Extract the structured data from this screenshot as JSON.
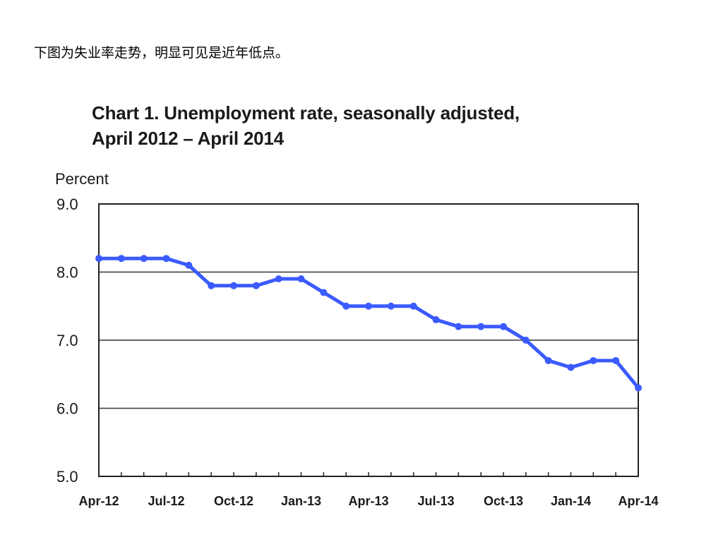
{
  "intro_text": "下图为失业率走势，明显可见是近年低点。",
  "chart_data": {
    "type": "line",
    "title_line1": "Chart 1. Unemployment rate, seasonally adjusted,",
    "title_line2": "April 2012 – April 2014",
    "ylabel": "Percent",
    "ylim": [
      5.0,
      9.0
    ],
    "yticks": [
      "5.0",
      "6.0",
      "7.0",
      "8.0",
      "9.0"
    ],
    "xtick_labels": [
      "Apr-12",
      "Jul-12",
      "Oct-12",
      "Jan-13",
      "Apr-13",
      "Jul-13",
      "Oct-13",
      "Jan-14",
      "Apr-14"
    ],
    "grid": true,
    "line_color": "#3b5bff",
    "series": [
      {
        "x": [
          "Apr-12",
          "May-12",
          "Jun-12",
          "Jul-12",
          "Aug-12",
          "Sep-12",
          "Oct-12",
          "Nov-12",
          "Dec-12",
          "Jan-13",
          "Feb-13",
          "Mar-13",
          "Apr-13",
          "May-13",
          "Jun-13",
          "Jul-13",
          "Aug-13",
          "Sep-13",
          "Oct-13",
          "Nov-13",
          "Dec-13",
          "Jan-14",
          "Feb-14",
          "Mar-14",
          "Apr-14"
        ],
        "values": [
          8.2,
          8.2,
          8.2,
          8.2,
          8.1,
          7.8,
          7.8,
          7.8,
          7.9,
          7.9,
          7.7,
          7.5,
          7.5,
          7.5,
          7.5,
          7.3,
          7.2,
          7.2,
          7.2,
          7.0,
          6.7,
          6.6,
          6.7,
          6.7,
          6.3
        ]
      }
    ]
  }
}
